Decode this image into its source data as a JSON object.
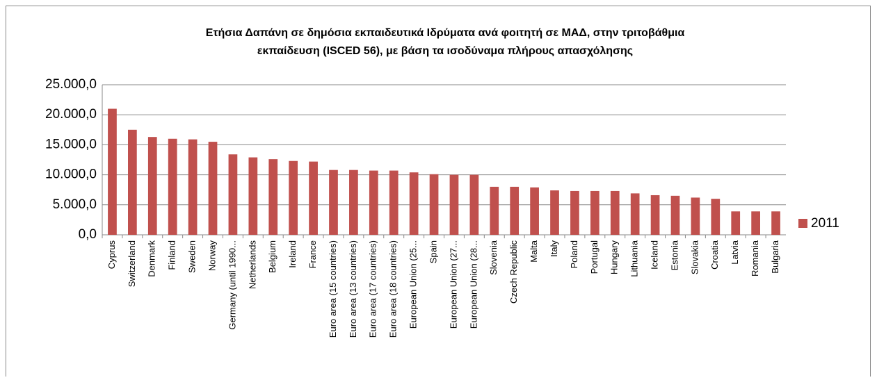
{
  "chart_data": {
    "type": "bar",
    "title": [
      "Ετήσια Δαπάνη σε δημόσια εκπαιδευτικά Ιδρύματα ανά φοιτητή σε ΜΑΔ, στην τριτοβάθμια",
      "εκπαίδευση (ISCED 56), με βάση τα ισοδύναμα πλήρους απασχόλησης"
    ],
    "categories": [
      "Cyprus",
      "Switzerland",
      "Denmark",
      "Finland",
      "Sweden",
      "Norway",
      "Germany (until 1990...",
      "Netherlands",
      "Belgium",
      "Ireland",
      "France",
      "Euro area (15 countries)",
      "Euro area (13 countries)",
      "Euro area (17 countries)",
      "Euro area (18 countries)",
      "European Union (25...",
      "Spain",
      "European Union (27...",
      "European Union (28...",
      "Slovenia",
      "Czech Republic",
      "Malta",
      "Italy",
      "Poland",
      "Portugal",
      "Hungary",
      "Lithuania",
      "Iceland",
      "Estonia",
      "Slovakia",
      "Croatia",
      "Latvia",
      "Romania",
      "Bulgaria"
    ],
    "series": [
      {
        "name": "2011",
        "color": "#c0504d",
        "values": [
          21000,
          17500,
          16300,
          16000,
          15900,
          15500,
          13400,
          12900,
          12600,
          12300,
          12200,
          10800,
          10800,
          10700,
          10700,
          10400,
          10100,
          10000,
          10000,
          8000,
          8000,
          7900,
          7400,
          7300,
          7300,
          7300,
          6900,
          6600,
          6500,
          6200,
          6000,
          3900,
          3900,
          3900
        ]
      }
    ],
    "ylim": [
      0,
      25000
    ],
    "yticks": [
      {
        "value": 0,
        "label": "0,0"
      },
      {
        "value": 5000,
        "label": "5.000,0"
      },
      {
        "value": 10000,
        "label": "10.000,0"
      },
      {
        "value": 15000,
        "label": "15.000,0"
      },
      {
        "value": 20000,
        "label": "20.000,0"
      },
      {
        "value": 25000,
        "label": "25.000,0"
      }
    ],
    "grid": true,
    "legend": "right"
  }
}
